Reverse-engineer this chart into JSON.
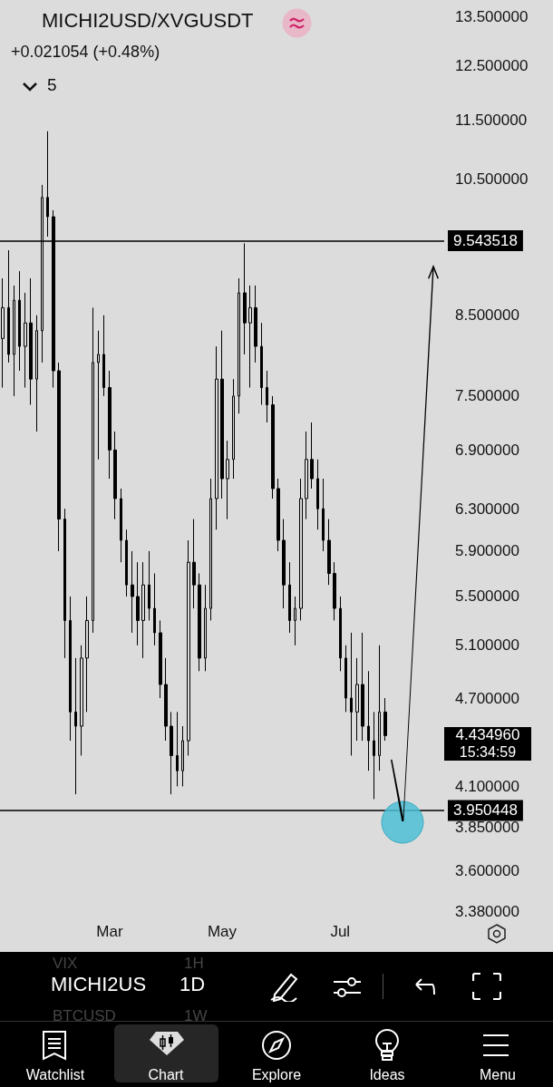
{
  "chart_data": {
    "type": "candlestick",
    "title": "MICHI2USD/XVGUSDT",
    "subtitle": "+0.021054 (+0.48%)",
    "categories": [
      null,
      null,
      null,
      null,
      null,
      null,
      null,
      null,
      null,
      null,
      null,
      null,
      null,
      null,
      null,
      null,
      null,
      null,
      null,
      "Mar",
      null,
      null,
      null,
      null,
      null,
      null,
      null,
      null,
      null,
      null,
      null,
      null,
      null,
      null,
      null,
      null,
      null,
      null,
      null,
      "May",
      null,
      null,
      null,
      null,
      null,
      null,
      null,
      null,
      null,
      null,
      null,
      null,
      null,
      null,
      null,
      null,
      null,
      null,
      null,
      null,
      "Jul",
      null,
      null,
      null,
      null,
      null,
      null,
      null,
      null,
      null,
      null,
      null,
      null,
      null,
      null,
      null,
      null,
      null,
      null
    ],
    "ohlc": [
      [
        8.2,
        9.0,
        7.6,
        8.6
      ],
      [
        8.6,
        9.4,
        7.9,
        8.0
      ],
      [
        8.0,
        8.9,
        7.5,
        8.7
      ],
      [
        8.7,
        9.1,
        7.8,
        8.1
      ],
      [
        8.1,
        8.8,
        7.6,
        8.4
      ],
      [
        8.4,
        9.0,
        7.4,
        7.7
      ],
      [
        7.7,
        8.5,
        7.1,
        8.3
      ],
      [
        8.3,
        10.4,
        7.9,
        10.2
      ],
      [
        10.2,
        11.3,
        9.6,
        9.9
      ],
      [
        9.9,
        10.0,
        7.6,
        7.8
      ],
      [
        7.8,
        7.9,
        5.9,
        6.2
      ],
      [
        6.2,
        6.3,
        5.0,
        5.3
      ],
      [
        5.3,
        5.5,
        4.4,
        4.6
      ],
      [
        4.6,
        5.0,
        4.05,
        4.5
      ],
      [
        4.5,
        5.1,
        4.3,
        5.0
      ],
      [
        5.0,
        5.5,
        4.6,
        5.3
      ],
      [
        5.3,
        8.6,
        5.2,
        7.9
      ],
      [
        7.9,
        8.3,
        6.8,
        8.0
      ],
      [
        8.0,
        8.5,
        7.5,
        7.6
      ],
      [
        7.6,
        7.8,
        6.6,
        6.9
      ],
      [
        6.9,
        7.1,
        6.2,
        6.4
      ],
      [
        6.4,
        6.5,
        5.8,
        6.0
      ],
      [
        6.0,
        6.1,
        5.5,
        5.6
      ],
      [
        5.6,
        5.9,
        5.2,
        5.5
      ],
      [
        5.5,
        5.8,
        5.1,
        5.3
      ],
      [
        5.3,
        5.8,
        5.0,
        5.6
      ],
      [
        5.6,
        5.9,
        5.3,
        5.4
      ],
      [
        5.4,
        5.7,
        5.1,
        5.2
      ],
      [
        5.2,
        5.3,
        4.7,
        4.8
      ],
      [
        4.8,
        5.0,
        4.4,
        4.5
      ],
      [
        4.5,
        4.6,
        4.05,
        4.3
      ],
      [
        4.3,
        4.6,
        4.1,
        4.2
      ],
      [
        4.2,
        4.5,
        4.1,
        4.4
      ],
      [
        4.4,
        6.0,
        4.3,
        5.8
      ],
      [
        5.8,
        6.2,
        5.4,
        5.6
      ],
      [
        5.6,
        5.7,
        4.9,
        5.0
      ],
      [
        5.0,
        5.6,
        4.9,
        5.4
      ],
      [
        5.4,
        6.6,
        5.3,
        6.4
      ],
      [
        6.4,
        8.1,
        6.1,
        7.7
      ],
      [
        7.7,
        8.3,
        6.4,
        6.6
      ],
      [
        6.6,
        7.0,
        6.2,
        6.8
      ],
      [
        6.8,
        7.7,
        6.6,
        7.5
      ],
      [
        7.5,
        9.0,
        7.3,
        8.8
      ],
      [
        8.8,
        9.5,
        8.0,
        8.4
      ],
      [
        8.4,
        8.9,
        7.6,
        8.6
      ],
      [
        8.6,
        8.9,
        7.9,
        8.1
      ],
      [
        8.1,
        8.4,
        7.4,
        7.6
      ],
      [
        7.6,
        7.8,
        7.2,
        7.4
      ],
      [
        7.4,
        7.5,
        6.4,
        6.5
      ],
      [
        6.5,
        6.6,
        5.9,
        6.0
      ],
      [
        6.0,
        6.2,
        5.4,
        5.6
      ],
      [
        5.6,
        5.8,
        5.2,
        5.3
      ],
      [
        5.3,
        5.5,
        5.1,
        5.4
      ],
      [
        5.4,
        6.6,
        5.3,
        6.4
      ],
      [
        6.4,
        7.1,
        6.2,
        6.8
      ],
      [
        6.8,
        7.2,
        6.5,
        6.6
      ],
      [
        6.6,
        6.8,
        6.1,
        6.3
      ],
      [
        6.3,
        6.6,
        5.9,
        6.0
      ],
      [
        6.0,
        6.2,
        5.6,
        5.7
      ],
      [
        5.7,
        5.8,
        5.3,
        5.4
      ],
      [
        5.4,
        5.5,
        4.9,
        5.0
      ],
      [
        5.0,
        5.1,
        4.6,
        4.7
      ],
      [
        4.7,
        5.2,
        4.3,
        4.6
      ],
      [
        4.6,
        5.0,
        4.4,
        4.8
      ],
      [
        4.8,
        5.2,
        4.4,
        4.5
      ],
      [
        4.5,
        4.9,
        4.2,
        4.4
      ],
      [
        4.4,
        4.6,
        4.02,
        4.3
      ],
      [
        4.3,
        5.1,
        4.2,
        4.6
      ],
      [
        4.6,
        4.7,
        4.4,
        4.43496
      ],
      null,
      null,
      null,
      null,
      null,
      null,
      null,
      null,
      null,
      null
    ],
    "color": "#000000",
    "log": "y",
    "ylim": [
      3.38,
      13.5
    ],
    "yticks": [
      {
        "value": 13.5,
        "label": "13.500000"
      },
      {
        "value": 12.5,
        "label": "12.500000"
      },
      {
        "value": 11.5,
        "label": "11.500000"
      },
      {
        "value": 10.5,
        "label": "10.500000"
      },
      {
        "value": 8.5,
        "label": "8.500000"
      },
      {
        "value": 7.5,
        "label": "7.500000"
      },
      {
        "value": 6.9,
        "label": "6.900000"
      },
      {
        "value": 6.3,
        "label": "6.300000"
      },
      {
        "value": 5.9,
        "label": "5.900000"
      },
      {
        "value": 5.5,
        "label": "5.500000"
      },
      {
        "value": 5.1,
        "label": "5.100000"
      },
      {
        "value": 4.7,
        "label": "4.700000"
      },
      {
        "value": 4.1,
        "label": "4.100000"
      },
      {
        "value": 3.85,
        "label": "3.850000"
      },
      {
        "value": 3.6,
        "label": "3.600000"
      },
      {
        "value": 3.38,
        "label": "3.380000"
      }
    ],
    "ref_lines": [
      {
        "axis": "y",
        "value": 9.543518,
        "label": "9.543518",
        "color": "#000000"
      },
      {
        "axis": "y",
        "value": 3.950448,
        "label": "3.950448",
        "color": "#000000"
      }
    ],
    "annotations": [
      "4.434960",
      "15:34:59",
      "5",
      "VIX",
      "1H",
      "MICHI2US",
      "1D",
      "BTCUSD",
      "1W",
      "Watchlist",
      "Chart",
      "Explore",
      "Ideas",
      "Menu"
    ],
    "grid": false
  }
}
